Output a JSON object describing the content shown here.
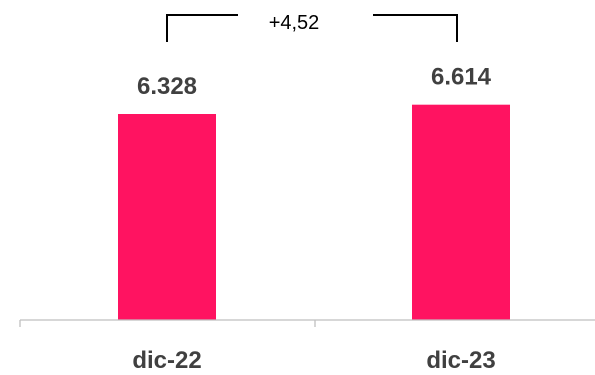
{
  "chart_data": {
    "type": "bar",
    "categories": [
      "dic-22",
      "dic-23"
    ],
    "values": [
      6328,
      6614
    ],
    "value_labels": [
      "6.328",
      "6.614"
    ],
    "difference_label": "+4,52",
    "ylim": [
      0,
      7000
    ],
    "grid": false,
    "colors": {
      "bar": "#FF1361",
      "axis": "#BFBFBF",
      "label": "#404040",
      "bracket": "#000000"
    }
  }
}
